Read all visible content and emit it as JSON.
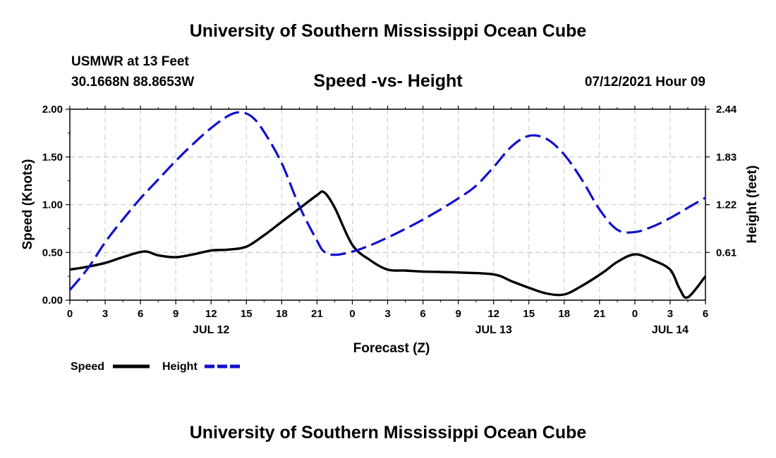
{
  "header": {
    "title": "University of Southern Mississippi Ocean Cube",
    "station": "USMWR at 13 Feet",
    "coords": "30.1668N  88.8653W",
    "timestamp": "07/12/2021 Hour 09"
  },
  "footer": {
    "title": "University of Southern Mississippi Ocean Cube"
  },
  "colors": {
    "speed": "#000000",
    "height": "#1010cc",
    "grid": "#c8c8c8"
  },
  "chart_data": {
    "type": "line",
    "title": "Speed -vs- Height",
    "xlabel": "Forecast (Z)",
    "ylabel": "Speed (Knots)",
    "y2label": "Height (feet)",
    "x_range_hours": [
      0,
      54
    ],
    "x_tick_step_hours": 1.5,
    "x_tick_labels": [
      "0",
      "3",
      "6",
      "9",
      "12",
      "15",
      "18",
      "21",
      "0",
      "3",
      "6",
      "9",
      "12",
      "15",
      "18",
      "21",
      "0",
      "3",
      "6"
    ],
    "date_labels": [
      {
        "label": "JUL 12",
        "hour": 12
      },
      {
        "label": "JUL 13",
        "hour": 36
      },
      {
        "label": "JUL 14",
        "hour": 51
      }
    ],
    "ylim": [
      0,
      2.0
    ],
    "y_ticks": [
      0,
      0.5,
      1.0,
      1.5,
      2.0
    ],
    "y_tick_labels": [
      "0.00",
      "0.50",
      "1.00",
      "1.50",
      "2.00"
    ],
    "y2lim": [
      0,
      2.44
    ],
    "y2_ticks": [
      0.61,
      1.22,
      1.83,
      2.44
    ],
    "y2_tick_labels": [
      "0.61",
      "1.22",
      "1.83",
      "2.44"
    ],
    "legend": {
      "position": "bottom-left",
      "entries": [
        "Speed",
        "Height"
      ]
    },
    "series": [
      {
        "name": "Speed",
        "axis": "left",
        "style": "solid",
        "x": [
          0,
          1.5,
          3,
          4.5,
          6.3,
          7.5,
          9,
          10.5,
          12,
          13.5,
          15,
          16.5,
          18,
          19.5,
          21,
          21.6,
          22.5,
          24,
          25.5,
          27,
          28.5,
          30,
          33,
          36,
          37.5,
          39,
          40.5,
          42,
          43.5,
          45.3,
          46.5,
          48,
          49.5,
          51,
          51.8,
          52.5,
          54
        ],
        "values": [
          0.32,
          0.35,
          0.39,
          0.45,
          0.51,
          0.47,
          0.45,
          0.48,
          0.52,
          0.53,
          0.56,
          0.68,
          0.82,
          0.96,
          1.1,
          1.13,
          0.97,
          0.58,
          0.42,
          0.32,
          0.31,
          0.3,
          0.29,
          0.27,
          0.2,
          0.13,
          0.07,
          0.06,
          0.15,
          0.29,
          0.4,
          0.48,
          0.42,
          0.32,
          0.12,
          0.03,
          0.25
        ]
      },
      {
        "name": "Height",
        "axis": "right",
        "style": "dashed",
        "x": [
          0,
          1.5,
          3,
          4.5,
          6,
          7.5,
          9,
          10.5,
          12,
          13.5,
          14.5,
          15.5,
          16.5,
          18,
          19.5,
          21,
          21.6,
          22.5,
          24,
          25.5,
          27,
          28.5,
          30,
          31.5,
          33,
          34.5,
          36,
          37.5,
          39,
          40.5,
          42,
          43.5,
          45,
          46.5,
          48,
          49.5,
          51,
          52.5,
          54
        ],
        "values": [
          0.13,
          0.4,
          0.74,
          1.03,
          1.3,
          1.54,
          1.78,
          2.0,
          2.2,
          2.36,
          2.4,
          2.34,
          2.15,
          1.75,
          1.2,
          0.76,
          0.62,
          0.58,
          0.62,
          0.7,
          0.8,
          0.91,
          1.03,
          1.16,
          1.3,
          1.46,
          1.7,
          1.96,
          2.1,
          2.06,
          1.86,
          1.54,
          1.16,
          0.9,
          0.87,
          0.94,
          1.05,
          1.18,
          1.31
        ]
      }
    ]
  }
}
